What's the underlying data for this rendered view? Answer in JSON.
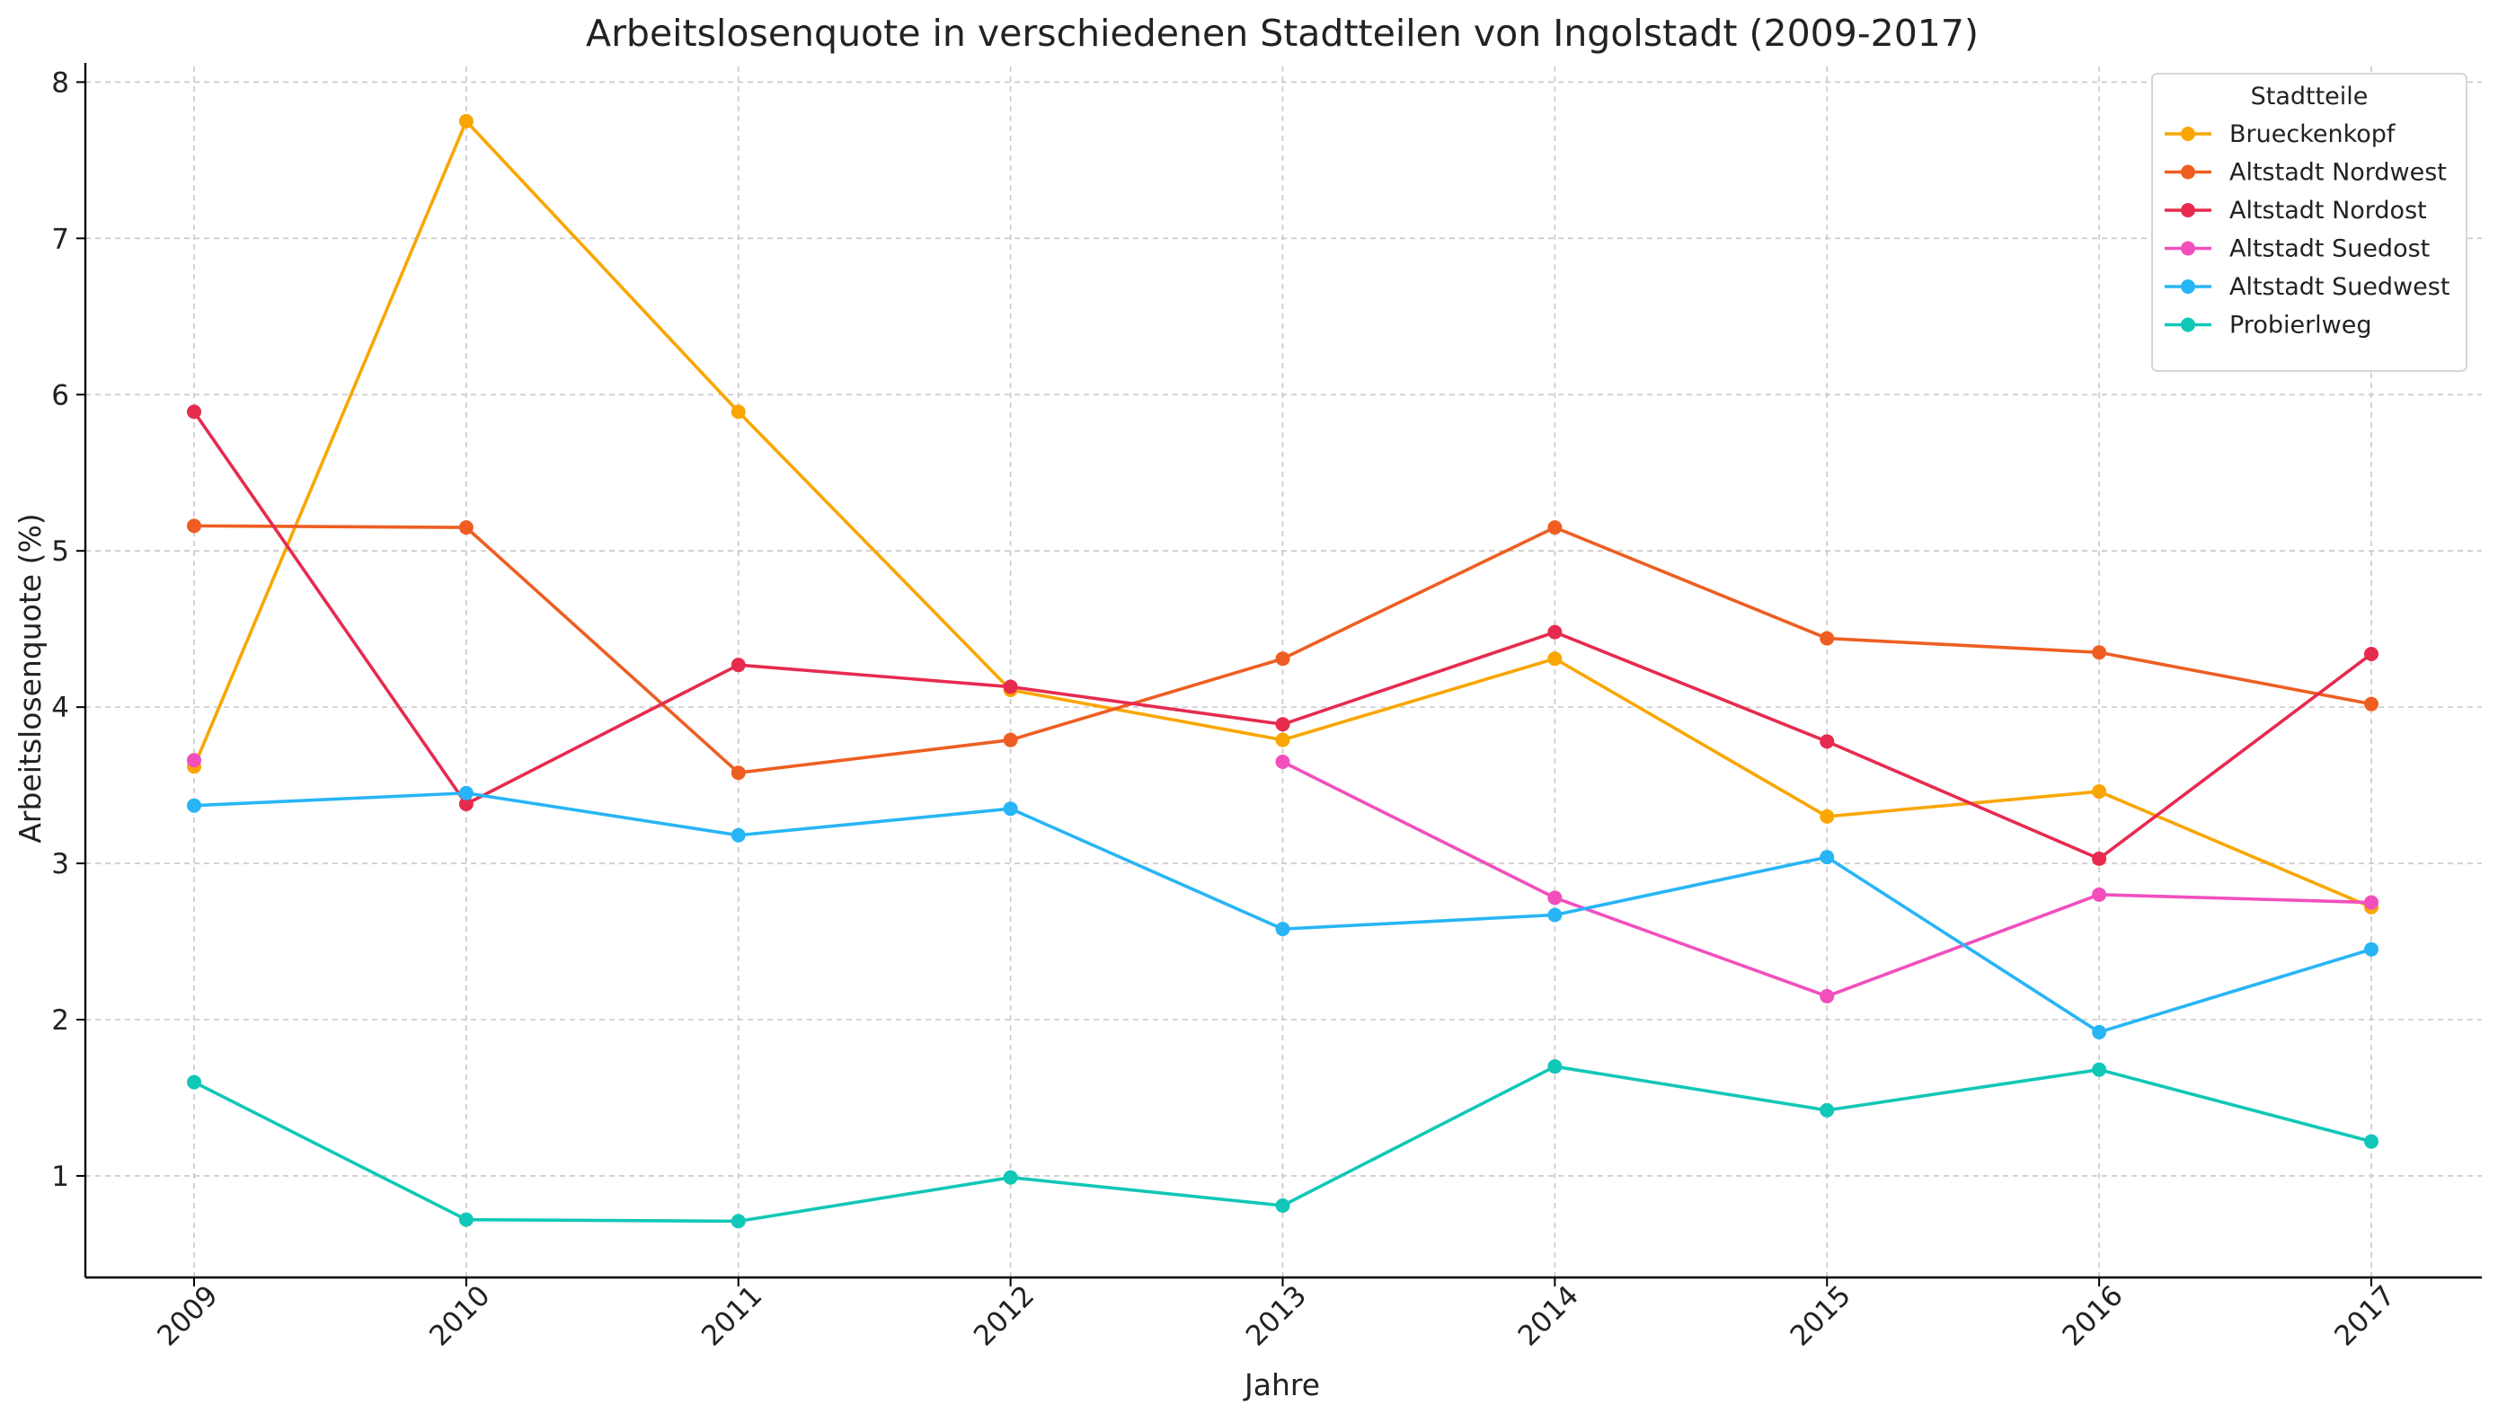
{
  "chart_data": {
    "type": "line",
    "title": "Arbeitslosenquote in verschiedenen Stadtteilen von Ingolstadt (2009-2017)",
    "xlabel": "Jahre",
    "ylabel": "Arbeitslosenquote (%)",
    "x": [
      "2009",
      "2010",
      "2011",
      "2012",
      "2013",
      "2014",
      "2015",
      "2016",
      "2017"
    ],
    "ylim": [
      0.35,
      8.1
    ],
    "yticks": [
      "1",
      "2",
      "3",
      "4",
      "5",
      "6",
      "7",
      "8"
    ],
    "grid": true,
    "legend": {
      "title": "Stadtteile",
      "placement": "top-right"
    },
    "series": [
      {
        "name": "Brueckenkopf",
        "color": "#f9a602",
        "values": [
          3.62,
          7.75,
          5.89,
          4.11,
          3.79,
          4.31,
          3.3,
          3.46,
          2.72
        ]
      },
      {
        "name": "Altstadt Nordwest",
        "color": "#ee5e22",
        "values": [
          5.16,
          5.15,
          3.58,
          3.79,
          4.31,
          5.15,
          4.44,
          4.35,
          4.02
        ]
      },
      {
        "name": "Altstadt Nordost",
        "color": "#e62b4f",
        "values": [
          5.89,
          3.38,
          4.27,
          4.13,
          3.89,
          4.48,
          3.78,
          3.03,
          4.34
        ]
      },
      {
        "name": "Altstadt Suedost",
        "color": "#f24fbd",
        "values": [
          3.66,
          null,
          null,
          null,
          3.65,
          2.78,
          2.15,
          2.8,
          2.75
        ]
      },
      {
        "name": "Altstadt Suedwest",
        "color": "#28b5f5",
        "values": [
          3.37,
          3.45,
          3.18,
          3.35,
          2.58,
          2.67,
          3.04,
          1.92,
          2.45
        ]
      },
      {
        "name": "Probierlweg",
        "color": "#11c7b7",
        "values": [
          1.6,
          0.72,
          0.71,
          0.99,
          0.81,
          1.7,
          1.42,
          1.68,
          1.22
        ]
      }
    ]
  }
}
